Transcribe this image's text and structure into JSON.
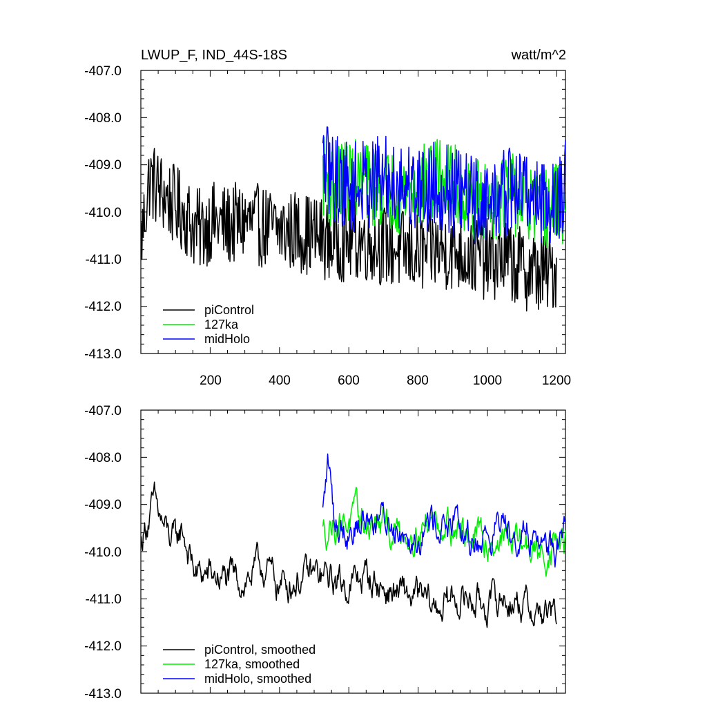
{
  "chart_data": [
    {
      "type": "line",
      "panel": "top",
      "title": "LWUP_F, IND_44S-18S",
      "units": "watt/m^2",
      "xlim": [
        0,
        1225
      ],
      "ylim": [
        -413.0,
        -407.0
      ],
      "yticks": [
        -407.0,
        -408.0,
        -409.0,
        -410.0,
        -411.0,
        -412.0,
        -413.0
      ],
      "ytick_labels": [
        "-407.0",
        "-408.0",
        "-409.0",
        "-410.0",
        "-411.0",
        "-412.0",
        "-413.0"
      ],
      "xticks": [
        200,
        400,
        600,
        800,
        1000,
        1200
      ],
      "xtick_labels": [
        "200",
        "400",
        "600",
        "800",
        "1000",
        "1200"
      ],
      "legend_position": "bottom-left",
      "series": [
        {
          "name": "piControl",
          "color": "#000000",
          "x_range": [
            1,
            1200
          ],
          "x": [
            1,
            25,
            50,
            75,
            100,
            125,
            150,
            175,
            200,
            250,
            300,
            350,
            400,
            450,
            500,
            550,
            600,
            650,
            700,
            750,
            800,
            850,
            900,
            950,
            1000,
            1050,
            1100,
            1150,
            1200
          ],
          "values": [
            -410.6,
            -409.3,
            -409.5,
            -409.7,
            -409.9,
            -410.0,
            -410.3,
            -410.4,
            -410.2,
            -410.3,
            -410.2,
            -410.3,
            -410.4,
            -410.4,
            -410.5,
            -410.6,
            -410.6,
            -410.6,
            -410.7,
            -410.8,
            -410.9,
            -410.8,
            -410.8,
            -410.9,
            -411.0,
            -411.0,
            -411.2,
            -411.3,
            -411.2
          ],
          "noise_amplitude": 0.55,
          "stroke_width": 1.5
        },
        {
          "name": "127ka",
          "color": "#00ee00",
          "x_range": [
            525,
            1225
          ],
          "x": [
            525,
            550,
            600,
            650,
            700,
            750,
            800,
            850,
            900,
            950,
            1000,
            1050,
            1100,
            1150,
            1200,
            1225
          ],
          "values": [
            -409.2,
            -409.5,
            -409.3,
            -409.4,
            -409.5,
            -409.6,
            -409.5,
            -409.3,
            -409.4,
            -409.7,
            -409.8,
            -409.6,
            -409.7,
            -410.0,
            -409.8,
            -409.9
          ],
          "noise_amplitude": 0.55,
          "stroke_width": 1.5
        },
        {
          "name": "midHolo",
          "color": "#0000ff",
          "x_range": [
            525,
            1225
          ],
          "x": [
            525,
            550,
            600,
            650,
            700,
            750,
            800,
            850,
            900,
            950,
            1000,
            1050,
            1100,
            1150,
            1200,
            1225
          ],
          "values": [
            -409.0,
            -409.2,
            -409.5,
            -409.4,
            -409.3,
            -409.4,
            -409.5,
            -409.4,
            -409.6,
            -409.7,
            -409.8,
            -409.6,
            -409.5,
            -409.7,
            -409.8,
            -409.4
          ],
          "noise_amplitude": 0.6,
          "stroke_width": 1.5
        }
      ]
    },
    {
      "type": "line",
      "panel": "bottom",
      "title": "",
      "xlim": [
        0,
        1225
      ],
      "ylim": [
        -413.0,
        -407.0
      ],
      "yticks": [
        -407.0,
        -408.0,
        -409.0,
        -410.0,
        -411.0,
        -412.0,
        -413.0
      ],
      "ytick_labels": [
        "-407.0",
        "-408.0",
        "-409.0",
        "-410.0",
        "-411.0",
        "-412.0",
        "-413.0"
      ],
      "legend_position": "bottom-left",
      "series": [
        {
          "name": "piControl, smoothed",
          "color": "#000000",
          "x_range": [
            1,
            1200
          ],
          "x": [
            1,
            20,
            40,
            60,
            80,
            100,
            120,
            140,
            160,
            200,
            250,
            300,
            350,
            400,
            450,
            500,
            550,
            600,
            650,
            700,
            750,
            800,
            850,
            900,
            950,
            1000,
            1050,
            1100,
            1150,
            1200
          ],
          "values": [
            -409.8,
            -409.3,
            -409.0,
            -409.4,
            -409.7,
            -409.8,
            -409.5,
            -410.1,
            -410.5,
            -410.5,
            -410.6,
            -410.6,
            -410.3,
            -410.7,
            -410.6,
            -410.5,
            -410.6,
            -410.7,
            -410.5,
            -410.8,
            -410.9,
            -411.0,
            -411.2,
            -411.0,
            -411.0,
            -411.1,
            -411.0,
            -411.1,
            -411.3,
            -411.4
          ],
          "noise_amplitude": 0.25,
          "stroke_width": 1.5
        },
        {
          "name": "127ka, smoothed",
          "color": "#00ee00",
          "x_range": [
            525,
            1225
          ],
          "x": [
            525,
            550,
            600,
            650,
            700,
            750,
            800,
            850,
            900,
            950,
            1000,
            1050,
            1100,
            1150,
            1200,
            1225
          ],
          "values": [
            -409.6,
            -409.4,
            -409.3,
            -409.4,
            -409.5,
            -409.6,
            -409.5,
            -409.3,
            -409.4,
            -409.7,
            -409.8,
            -409.7,
            -409.8,
            -410.1,
            -409.8,
            -409.9
          ],
          "noise_amplitude": 0.25,
          "stroke_width": 1.5
        },
        {
          "name": "midHolo, smoothed",
          "color": "#0000ff",
          "x_range": [
            525,
            1225
          ],
          "x": [
            525,
            540,
            560,
            600,
            650,
            700,
            750,
            800,
            850,
            900,
            950,
            1000,
            1050,
            1100,
            1150,
            1200,
            1225
          ],
          "values": [
            -409.2,
            -408.1,
            -409.4,
            -409.5,
            -409.3,
            -409.3,
            -409.5,
            -409.6,
            -409.3,
            -409.5,
            -409.8,
            -409.7,
            -409.3,
            -409.6,
            -409.7,
            -409.9,
            -409.5
          ],
          "noise_amplitude": 0.25,
          "stroke_width": 1.5
        }
      ]
    }
  ]
}
